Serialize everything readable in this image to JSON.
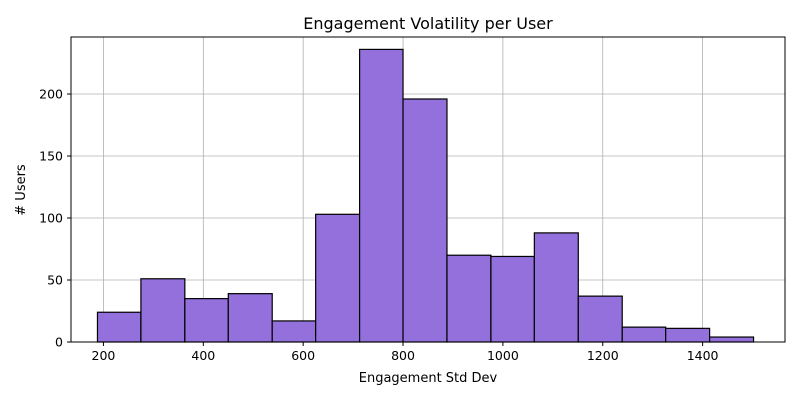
{
  "chart_data": {
    "type": "bar",
    "title": "Engagement Volatility per User",
    "xlabel": "Engagement Std Dev",
    "ylabel": "# Users",
    "xlim": [
      135,
      1565
    ],
    "ylim": [
      0,
      246
    ],
    "x_ticks": [
      200,
      400,
      600,
      800,
      1000,
      1200,
      1400
    ],
    "y_ticks": [
      0,
      50,
      100,
      150,
      200
    ],
    "grid": true,
    "bar_color": "#9370db",
    "edge_color": "#000000",
    "bins": [
      {
        "start": 188,
        "end": 275,
        "count": 24
      },
      {
        "start": 275,
        "end": 363,
        "count": 51
      },
      {
        "start": 363,
        "end": 450,
        "count": 35
      },
      {
        "start": 450,
        "end": 538,
        "count": 39
      },
      {
        "start": 538,
        "end": 625,
        "count": 17
      },
      {
        "start": 625,
        "end": 713,
        "count": 103
      },
      {
        "start": 713,
        "end": 800,
        "count": 236
      },
      {
        "start": 800,
        "end": 888,
        "count": 196
      },
      {
        "start": 888,
        "end": 976,
        "count": 70
      },
      {
        "start": 976,
        "end": 1063,
        "count": 69
      },
      {
        "start": 1063,
        "end": 1151,
        "count": 88
      },
      {
        "start": 1151,
        "end": 1239,
        "count": 37
      },
      {
        "start": 1239,
        "end": 1326,
        "count": 12
      },
      {
        "start": 1326,
        "end": 1414,
        "count": 11
      },
      {
        "start": 1414,
        "end": 1502,
        "count": 4
      }
    ]
  }
}
